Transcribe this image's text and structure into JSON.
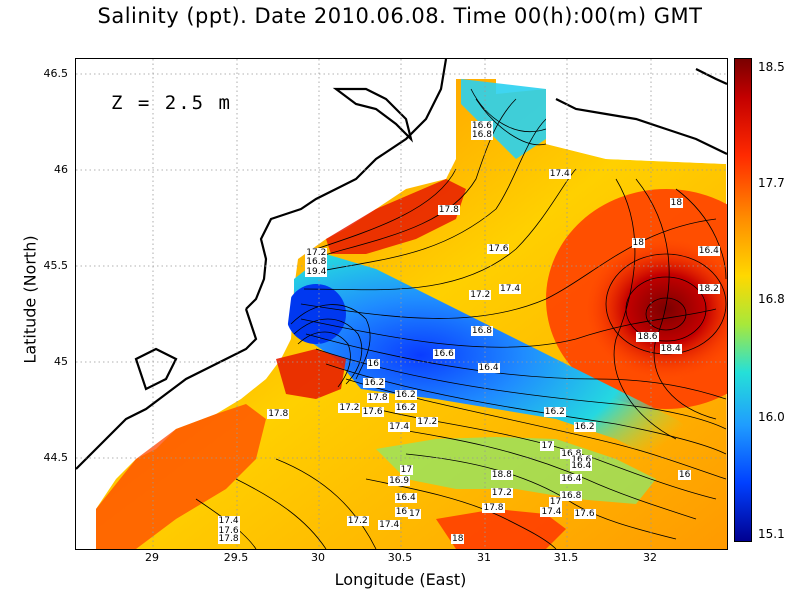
{
  "title": "Salinity (ppt). Date 2010.06.08. Time 00(h):00(m) GMT",
  "depth_label": "Z = 2.5 m",
  "axes": {
    "xlabel": "Longitude (East)",
    "ylabel": "Latitude (North)",
    "xticks": [
      "29",
      "29.5",
      "30",
      "30.5",
      "31",
      "31.5",
      "32"
    ],
    "yticks": [
      "46.5",
      "46",
      "45.5",
      "45",
      "44.5"
    ]
  },
  "colorbar": {
    "ticks": [
      "18.5",
      "17.7",
      "16.8",
      "16.0",
      "15.1"
    ],
    "colors": [
      "#7a0000",
      "#ff2a00",
      "#ffd800",
      "#25e0d8",
      "#0040ff",
      "#000090"
    ]
  },
  "contour_labels": [
    {
      "text": "16.6",
      "lon": 30.98,
      "lat": 46.23
    },
    {
      "text": "16.8",
      "lon": 30.98,
      "lat": 46.18
    },
    {
      "text": "17.4",
      "lon": 31.45,
      "lat": 45.98
    },
    {
      "text": "17.8",
      "lon": 30.78,
      "lat": 45.79
    },
    {
      "text": "18",
      "lon": 32.18,
      "lat": 45.83
    },
    {
      "text": "18",
      "lon": 31.95,
      "lat": 45.62
    },
    {
      "text": "17.6",
      "lon": 31.08,
      "lat": 45.59
    },
    {
      "text": "16.4",
      "lon": 32.35,
      "lat": 45.58
    },
    {
      "text": "17.2",
      "lon": 29.98,
      "lat": 45.57
    },
    {
      "text": "16.8",
      "lon": 29.98,
      "lat": 45.52
    },
    {
      "text": "19.4",
      "lon": 29.98,
      "lat": 45.47
    },
    {
      "text": "17.4",
      "lon": 31.15,
      "lat": 45.38
    },
    {
      "text": "17.2",
      "lon": 30.97,
      "lat": 45.35
    },
    {
      "text": "18.2",
      "lon": 32.35,
      "lat": 45.38
    },
    {
      "text": "16.8",
      "lon": 30.98,
      "lat": 45.16
    },
    {
      "text": "18.6",
      "lon": 31.98,
      "lat": 45.13
    },
    {
      "text": "18.4",
      "lon": 32.12,
      "lat": 45.07
    },
    {
      "text": "16.6",
      "lon": 30.75,
      "lat": 45.04
    },
    {
      "text": "16",
      "lon": 30.35,
      "lat": 44.99
    },
    {
      "text": "16.4",
      "lon": 31.02,
      "lat": 44.97
    },
    {
      "text": "16.2",
      "lon": 30.33,
      "lat": 44.89
    },
    {
      "text": "16.2",
      "lon": 30.52,
      "lat": 44.83
    },
    {
      "text": "17.8",
      "lon": 30.35,
      "lat": 44.81
    },
    {
      "text": "17.2",
      "lon": 30.18,
      "lat": 44.76
    },
    {
      "text": "17.6",
      "lon": 30.32,
      "lat": 44.74
    },
    {
      "text": "16.2",
      "lon": 30.52,
      "lat": 44.76
    },
    {
      "text": "17.8",
      "lon": 29.75,
      "lat": 44.73
    },
    {
      "text": "16.2",
      "lon": 31.42,
      "lat": 44.74
    },
    {
      "text": "17.2",
      "lon": 30.65,
      "lat": 44.69
    },
    {
      "text": "17.4",
      "lon": 30.48,
      "lat": 44.66
    },
    {
      "text": "16.2",
      "lon": 31.6,
      "lat": 44.66
    },
    {
      "text": "17",
      "lon": 31.4,
      "lat": 44.56
    },
    {
      "text": "16.8",
      "lon": 31.52,
      "lat": 44.52
    },
    {
      "text": "16.6",
      "lon": 31.58,
      "lat": 44.49
    },
    {
      "text": "16.4",
      "lon": 31.58,
      "lat": 44.46
    },
    {
      "text": "17",
      "lon": 30.55,
      "lat": 44.44
    },
    {
      "text": "18.8",
      "lon": 31.1,
      "lat": 44.41
    },
    {
      "text": "16.9",
      "lon": 30.48,
      "lat": 44.38
    },
    {
      "text": "16.4",
      "lon": 31.52,
      "lat": 44.39
    },
    {
      "text": "16",
      "lon": 32.23,
      "lat": 44.41
    },
    {
      "text": "17.2",
      "lon": 31.1,
      "lat": 44.32
    },
    {
      "text": "16.4",
      "lon": 30.52,
      "lat": 44.29
    },
    {
      "text": "16.8",
      "lon": 31.52,
      "lat": 44.3
    },
    {
      "text": "17",
      "lon": 31.45,
      "lat": 44.27
    },
    {
      "text": "17.8",
      "lon": 31.05,
      "lat": 44.24
    },
    {
      "text": "16",
      "lon": 30.52,
      "lat": 44.22
    },
    {
      "text": "17",
      "lon": 30.6,
      "lat": 44.21
    },
    {
      "text": "17.4",
      "lon": 31.4,
      "lat": 44.22
    },
    {
      "text": "17.6",
      "lon": 31.6,
      "lat": 44.21
    },
    {
      "text": "17.2",
      "lon": 30.23,
      "lat": 44.17
    },
    {
      "text": "17.4",
      "lon": 30.42,
      "lat": 44.15
    },
    {
      "text": "17.4",
      "lon": 29.45,
      "lat": 44.17
    },
    {
      "text": "17.6",
      "lon": 29.45,
      "lat": 44.12
    },
    {
      "text": "17.8",
      "lon": 29.45,
      "lat": 44.08
    },
    {
      "text": "18",
      "lon": 30.86,
      "lat": 44.08
    }
  ]
}
